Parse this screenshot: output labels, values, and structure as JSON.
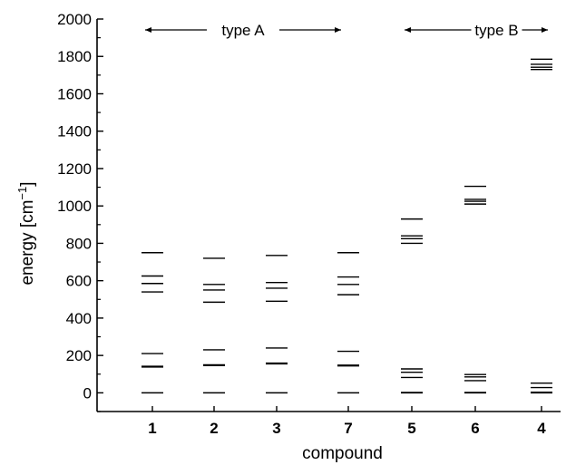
{
  "chart_data": {
    "type": "scatter",
    "xlabel": "compound",
    "ylabel_prefix": "energy [cm",
    "ylabel_exponent": "−1",
    "ylabel_suffix": "]",
    "ylim": [
      -100,
      2000
    ],
    "yticks": [
      0,
      200,
      400,
      600,
      800,
      1000,
      1200,
      1400,
      1600,
      1800,
      2000
    ],
    "grid": false,
    "categories": [
      "1",
      "2",
      "3",
      "7",
      "5",
      "6",
      "4"
    ],
    "levels": [
      {
        "compound": "1",
        "energies": [
          0,
          138,
          142,
          210,
          540,
          585,
          625,
          750
        ]
      },
      {
        "compound": "2",
        "energies": [
          0,
          146,
          150,
          230,
          485,
          550,
          580,
          720
        ]
      },
      {
        "compound": "3",
        "energies": [
          0,
          155,
          159,
          240,
          490,
          560,
          590,
          735
        ]
      },
      {
        "compound": "7",
        "energies": [
          0,
          144,
          148,
          222,
          525,
          580,
          620,
          750
        ]
      },
      {
        "compound": "5",
        "energies": [
          0,
          2,
          82,
          110,
          128,
          800,
          825,
          840,
          930
        ]
      },
      {
        "compound": "6",
        "energies": [
          0,
          2,
          65,
          85,
          98,
          1010,
          1025,
          1035,
          1105
        ]
      },
      {
        "compound": "4",
        "energies": [
          0,
          3,
          28,
          52,
          1730,
          1742,
          1758,
          1785
        ]
      }
    ],
    "annotations": [
      {
        "text": "type A",
        "span": [
          "1",
          "7"
        ]
      },
      {
        "text": "type B",
        "span": [
          "5",
          "4"
        ]
      }
    ]
  }
}
